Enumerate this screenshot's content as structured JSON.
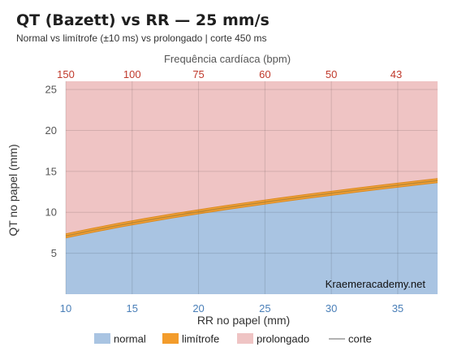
{
  "chart_data": {
    "type": "area",
    "title": "QT (Bazett) vs RR — 25 mm/s",
    "subtitle": "Normal vs limítrofe (±10 ms) vs prolongado | corte 450 ms",
    "xlabel": "RR no papel (mm)",
    "ylabel": "QT no papel (mm)",
    "x2label": "Frequência cardíaca (bpm)",
    "xlim": [
      10,
      38
    ],
    "ylim": [
      0,
      26
    ],
    "x_ticks": [
      10,
      15,
      20,
      25,
      30,
      35
    ],
    "y_ticks": [
      5,
      10,
      15,
      20,
      25
    ],
    "x2_ticks": [
      150,
      100,
      75,
      60,
      50,
      43
    ],
    "grid": true,
    "legend_position": "bottom",
    "x": [
      10,
      12,
      14,
      16,
      18,
      20,
      22,
      24,
      26,
      28,
      30,
      32,
      34,
      36,
      38
    ],
    "cutoff": [
      7.12,
      7.79,
      8.42,
      9.0,
      9.55,
      10.06,
      10.56,
      11.02,
      11.47,
      11.91,
      12.32,
      12.73,
      13.12,
      13.5,
      13.87
    ],
    "series": [
      {
        "name": "normal",
        "color": "#a9c4e2"
      },
      {
        "name": "limítrofe",
        "color": "#f39c2b"
      },
      {
        "name": "prolongado",
        "color": "#efc4c4"
      },
      {
        "name": "corte",
        "color": "#999999"
      }
    ],
    "borderline_half_width_ms": 10,
    "annotations": [
      "Kraemeracademy.net"
    ]
  }
}
